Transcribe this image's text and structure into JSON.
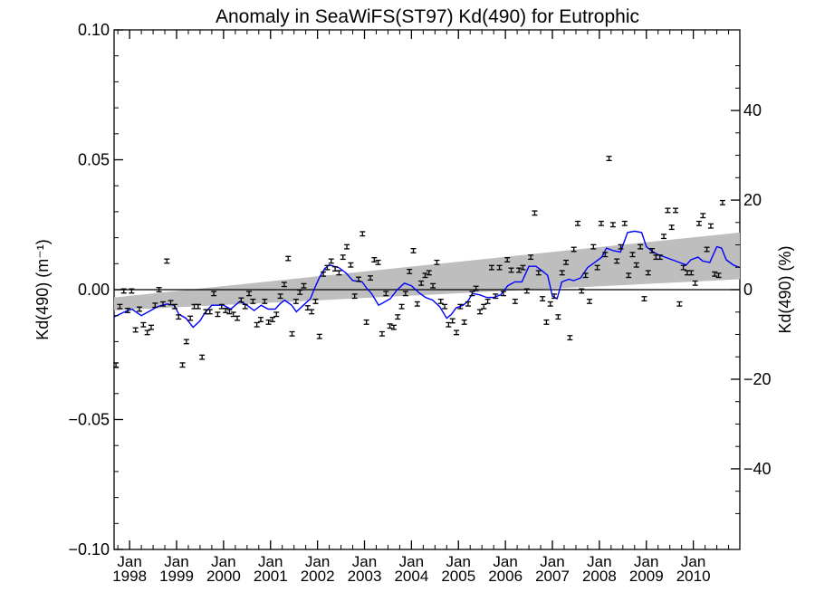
{
  "chart_data": {
    "type": "scatter",
    "title": "Anomaly in SeaWiFS(ST97) Kd(490) for Eutrophic",
    "ylabel_left": "Kd(490) (m⁻¹)",
    "ylabel_right": "Kd(490) (%)",
    "x_range_years": [
      1997.67,
      2010.99
    ],
    "ylim_left": [
      -0.1,
      0.1
    ],
    "ylim_right": [
      -58,
      58
    ],
    "left_ticks": [
      {
        "value": 0.1,
        "label": "0.10"
      },
      {
        "value": 0.05,
        "label": "0.05"
      },
      {
        "value": 0.0,
        "label": "0.00"
      },
      {
        "value": -0.05,
        "label": "−0.05"
      },
      {
        "value": -0.1,
        "label": "−0.10"
      }
    ],
    "right_ticks": [
      {
        "value": 40,
        "label": "40"
      },
      {
        "value": 20,
        "label": "20"
      },
      {
        "value": 0,
        "label": "0"
      },
      {
        "value": -20,
        "label": "−20"
      },
      {
        "value": -40,
        "label": "−40"
      }
    ],
    "x_ticks": [
      {
        "year": 1998,
        "month": "Jan",
        "label": "1998"
      },
      {
        "year": 1999,
        "month": "Jan",
        "label": "1999"
      },
      {
        "year": 2000,
        "month": "Jan",
        "label": "2000"
      },
      {
        "year": 2001,
        "month": "Jan",
        "label": "2001"
      },
      {
        "year": 2002,
        "month": "Jan",
        "label": "2002"
      },
      {
        "year": 2003,
        "month": "Jan",
        "label": "2003"
      },
      {
        "year": 2004,
        "month": "Jan",
        "label": "2004"
      },
      {
        "year": 2005,
        "month": "Jan",
        "label": "2005"
      },
      {
        "year": 2006,
        "month": "Jan",
        "label": "2006"
      },
      {
        "year": 2007,
        "month": "Jan",
        "label": "2007"
      },
      {
        "year": 2008,
        "month": "Jan",
        "label": "2008"
      },
      {
        "year": 2009,
        "month": "Jan",
        "label": "2009"
      },
      {
        "year": 2010,
        "month": "Jan",
        "label": "2010"
      }
    ],
    "zero_line": true,
    "trend_band": {
      "start": {
        "x": 1997.67,
        "lower": -0.008,
        "upper": -0.003
      },
      "end": {
        "x": 2010.99,
        "lower": 0.004,
        "upper": 0.022
      }
    },
    "monthly_points": {
      "x_start": 1997.71,
      "x_step": 0.0833,
      "error": 0.0008,
      "y": [
        -0.029,
        -0.0065,
        -0.0005,
        -0.008,
        -0.0005,
        -0.0155,
        -0.0075,
        -0.0135,
        -0.0165,
        -0.0145,
        -0.006,
        0.0,
        -0.0055,
        0.011,
        -0.005,
        -0.0065,
        -0.0105,
        -0.029,
        -0.02,
        -0.011,
        -0.0065,
        -0.0065,
        -0.026,
        -0.0085,
        -0.0085,
        -0.0015,
        -0.0095,
        -0.0065,
        -0.008,
        -0.0085,
        -0.0095,
        -0.011,
        -0.004,
        -0.0065,
        -0.0015,
        -0.0045,
        -0.0135,
        -0.0115,
        -0.0045,
        -0.0125,
        -0.0115,
        -0.0095,
        -0.0025,
        0.002,
        0.012,
        -0.017,
        -0.0045,
        -0.001,
        0.0015,
        -0.007,
        -0.0085,
        -0.0045,
        -0.018,
        0.006,
        0.0085,
        0.011,
        0.008,
        0.0065,
        0.0125,
        0.0165,
        0.0095,
        -0.0025,
        0.004,
        0.0215,
        -0.0125,
        0.0045,
        0.0115,
        0.0105,
        -0.017,
        -0.0015,
        -0.014,
        -0.0145,
        -0.0105,
        -0.0065,
        -0.0015,
        0.007,
        0.015,
        -0.0055,
        0.0025,
        0.0055,
        0.0065,
        0.0015,
        0.0105,
        -0.0045,
        -0.0065,
        -0.0135,
        -0.012,
        -0.0165,
        -0.0065,
        -0.0125,
        -0.0055,
        -0.0015,
        0.0005,
        -0.0085,
        -0.0065,
        -0.0045,
        0.0085,
        -0.0025,
        0.0085,
        -0.0015,
        0.0115,
        0.0075,
        -0.0045,
        0.0075,
        0.0085,
        -0.0005,
        0.0125,
        0.0295,
        0.0065,
        -0.0035,
        -0.0125,
        -0.0055,
        -0.0025,
        -0.0105,
        0.0065,
        0.0105,
        -0.0185,
        0.0155,
        0.0255,
        -0.0005,
        0.0055,
        -0.0045,
        0.0165,
        0.0085,
        0.0255,
        0.0135,
        0.0505,
        0.025,
        0.011,
        0.0165,
        0.0255,
        0.0055,
        0.0135,
        0.0095,
        0.0165,
        -0.0035,
        0.0065,
        0.015,
        0.0125,
        0.0125,
        0.0205,
        0.0305,
        0.024,
        0.0305,
        -0.0055,
        0.0085,
        0.0065,
        0.0065,
        0.0025,
        0.0255,
        0.0285,
        0.0155,
        0.0245,
        0.006,
        0.0055,
        0.0335
      ]
    },
    "smoothed_line": {
      "color": "#0000ff",
      "points": [
        [
          1997.67,
          -0.0105
        ],
        [
          1997.9,
          -0.0085
        ],
        [
          1998.05,
          -0.0075
        ],
        [
          1998.25,
          -0.01
        ],
        [
          1998.45,
          -0.008
        ],
        [
          1998.6,
          -0.0065
        ],
        [
          1998.8,
          -0.0055
        ],
        [
          1998.95,
          -0.006
        ],
        [
          1999.05,
          -0.0095
        ],
        [
          1999.2,
          -0.011
        ],
        [
          1999.35,
          -0.0145
        ],
        [
          1999.5,
          -0.012
        ],
        [
          1999.6,
          -0.009
        ],
        [
          1999.75,
          -0.006
        ],
        [
          1999.9,
          -0.006
        ],
        [
          2000.0,
          -0.006
        ],
        [
          2000.15,
          -0.0075
        ],
        [
          2000.35,
          -0.0045
        ],
        [
          2000.5,
          -0.006
        ],
        [
          2000.65,
          -0.008
        ],
        [
          2000.8,
          -0.006
        ],
        [
          2000.95,
          -0.0075
        ],
        [
          2001.1,
          -0.0075
        ],
        [
          2001.2,
          -0.0055
        ],
        [
          2001.3,
          -0.004
        ],
        [
          2001.45,
          -0.006
        ],
        [
          2001.55,
          -0.0085
        ],
        [
          2001.7,
          -0.006
        ],
        [
          2001.85,
          -0.0035
        ],
        [
          2001.95,
          0.001
        ],
        [
          2002.05,
          0.005
        ],
        [
          2002.15,
          0.008
        ],
        [
          2002.25,
          0.0095
        ],
        [
          2002.35,
          0.009
        ],
        [
          2002.45,
          0.0085
        ],
        [
          2002.6,
          0.0065
        ],
        [
          2002.75,
          0.0035
        ],
        [
          2002.95,
          0.003
        ],
        [
          2003.05,
          0.0005
        ],
        [
          2003.15,
          -0.0015
        ],
        [
          2003.3,
          -0.006
        ],
        [
          2003.4,
          -0.005
        ],
        [
          2003.55,
          -0.0035
        ],
        [
          2003.7,
          0.0
        ],
        [
          2003.85,
          0.0025
        ],
        [
          2004.0,
          0.0015
        ],
        [
          2004.15,
          -0.001
        ],
        [
          2004.3,
          -0.003
        ],
        [
          2004.45,
          -0.004
        ],
        [
          2004.6,
          -0.0065
        ],
        [
          2004.75,
          -0.011
        ],
        [
          2004.85,
          -0.0095
        ],
        [
          2004.95,
          -0.007
        ],
        [
          2005.1,
          -0.006
        ],
        [
          2005.2,
          -0.0045
        ],
        [
          2005.3,
          -0.0015
        ],
        [
          2005.45,
          -0.002
        ],
        [
          2005.6,
          -0.003
        ],
        [
          2005.75,
          -0.003
        ],
        [
          2005.9,
          -0.002
        ],
        [
          2006.05,
          0.0015
        ],
        [
          2006.2,
          0.003
        ],
        [
          2006.35,
          0.003
        ],
        [
          2006.5,
          0.009
        ],
        [
          2006.65,
          0.009
        ],
        [
          2006.8,
          0.007
        ],
        [
          2006.9,
          0.0055
        ],
        [
          2007.0,
          -0.0025
        ],
        [
          2007.1,
          -0.0035
        ],
        [
          2007.2,
          0.003
        ],
        [
          2007.35,
          0.004
        ],
        [
          2007.45,
          0.0035
        ],
        [
          2007.6,
          0.0045
        ],
        [
          2007.75,
          0.0085
        ],
        [
          2007.9,
          0.0105
        ],
        [
          2008.05,
          0.0125
        ],
        [
          2008.15,
          0.016
        ],
        [
          2008.3,
          0.015
        ],
        [
          2008.45,
          0.0145
        ],
        [
          2008.6,
          0.022
        ],
        [
          2008.75,
          0.0225
        ],
        [
          2008.9,
          0.022
        ],
        [
          2009.0,
          0.0165
        ],
        [
          2009.15,
          0.0145
        ],
        [
          2009.25,
          0.0135
        ],
        [
          2009.4,
          0.0125
        ],
        [
          2009.55,
          0.0115
        ],
        [
          2009.7,
          0.0105
        ],
        [
          2009.85,
          0.0095
        ],
        [
          2009.95,
          0.0115
        ],
        [
          2010.1,
          0.0125
        ],
        [
          2010.2,
          0.011
        ],
        [
          2010.35,
          0.0105
        ],
        [
          2010.5,
          0.0165
        ],
        [
          2010.6,
          0.016
        ],
        [
          2010.7,
          0.0115
        ],
        [
          2010.85,
          0.0095
        ],
        [
          2010.99,
          0.0085
        ]
      ]
    },
    "colors": {
      "band": "#bebebe",
      "points": "#000000",
      "line": "#0000ff"
    },
    "grid": false
  }
}
